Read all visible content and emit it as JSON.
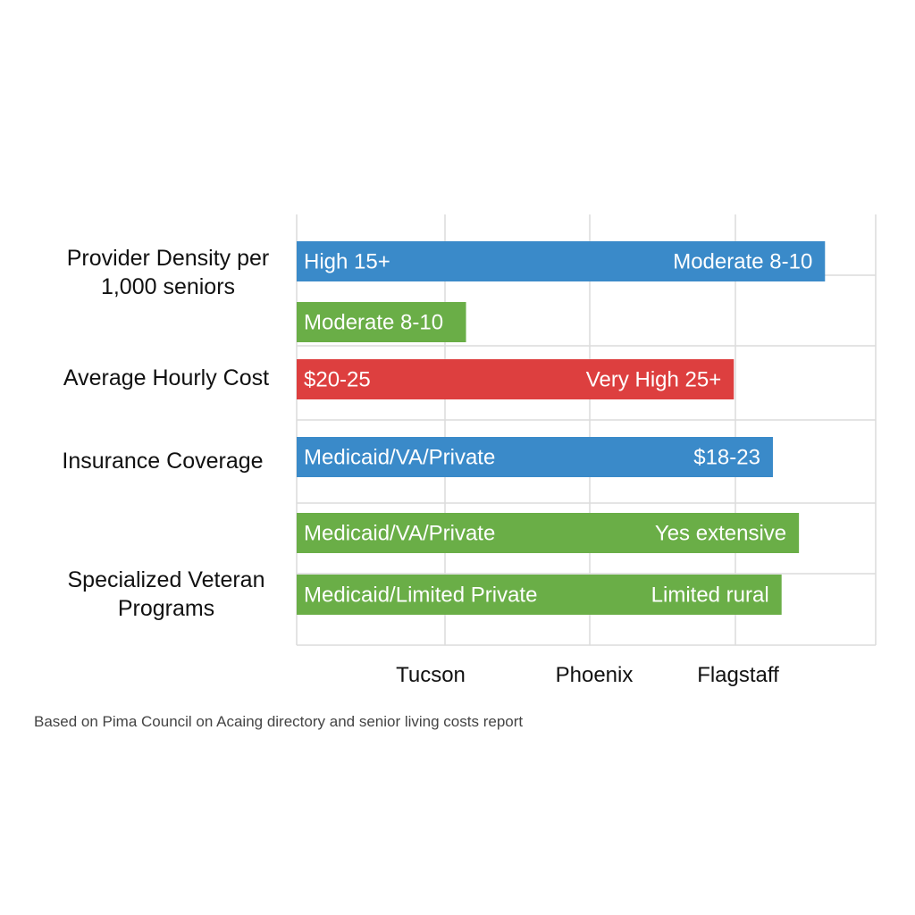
{
  "chart_data": {
    "type": "bar",
    "orientation": "horizontal",
    "row_labels": [
      "Provider Density per 1,000 seniors",
      "Average Hourly Cost",
      "Insurance Coverage",
      "Specialized Veteran Programs"
    ],
    "x_tick_labels": [
      "Tucson",
      "Phoenix",
      "Flagstaff"
    ],
    "grid": true,
    "bars": [
      {
        "start": 0,
        "end": 3.65,
        "color": "#3a8ac9",
        "left_label": "High 15+",
        "right_label": "Moderate 8-10"
      },
      {
        "start": 0,
        "end": 1.17,
        "color": "#6aae47",
        "left_label": "Moderate 8-10",
        "right_label": ""
      },
      {
        "start": 0,
        "end": 3.02,
        "color": "#dd3f3f",
        "left_label": "$20-25",
        "right_label": "Very High 25+"
      },
      {
        "start": 0,
        "end": 3.29,
        "color": "#3a8ac9",
        "left_label": "Medicaid/VA/Private",
        "right_label": "$18-23"
      },
      {
        "start": 0,
        "end": 3.47,
        "color": "#6aae47",
        "left_label": "Medicaid/VA/Private",
        "right_label": "Yes extensive"
      },
      {
        "start": 0,
        "end": 3.35,
        "color": "#6aae47",
        "left_label": "Medicaid/Limited Private",
        "right_label": "Limited rural"
      }
    ],
    "xlim": [
      0,
      4
    ]
  },
  "source_note": "Based on Pima Council on Acaing directory and senior living costs report"
}
